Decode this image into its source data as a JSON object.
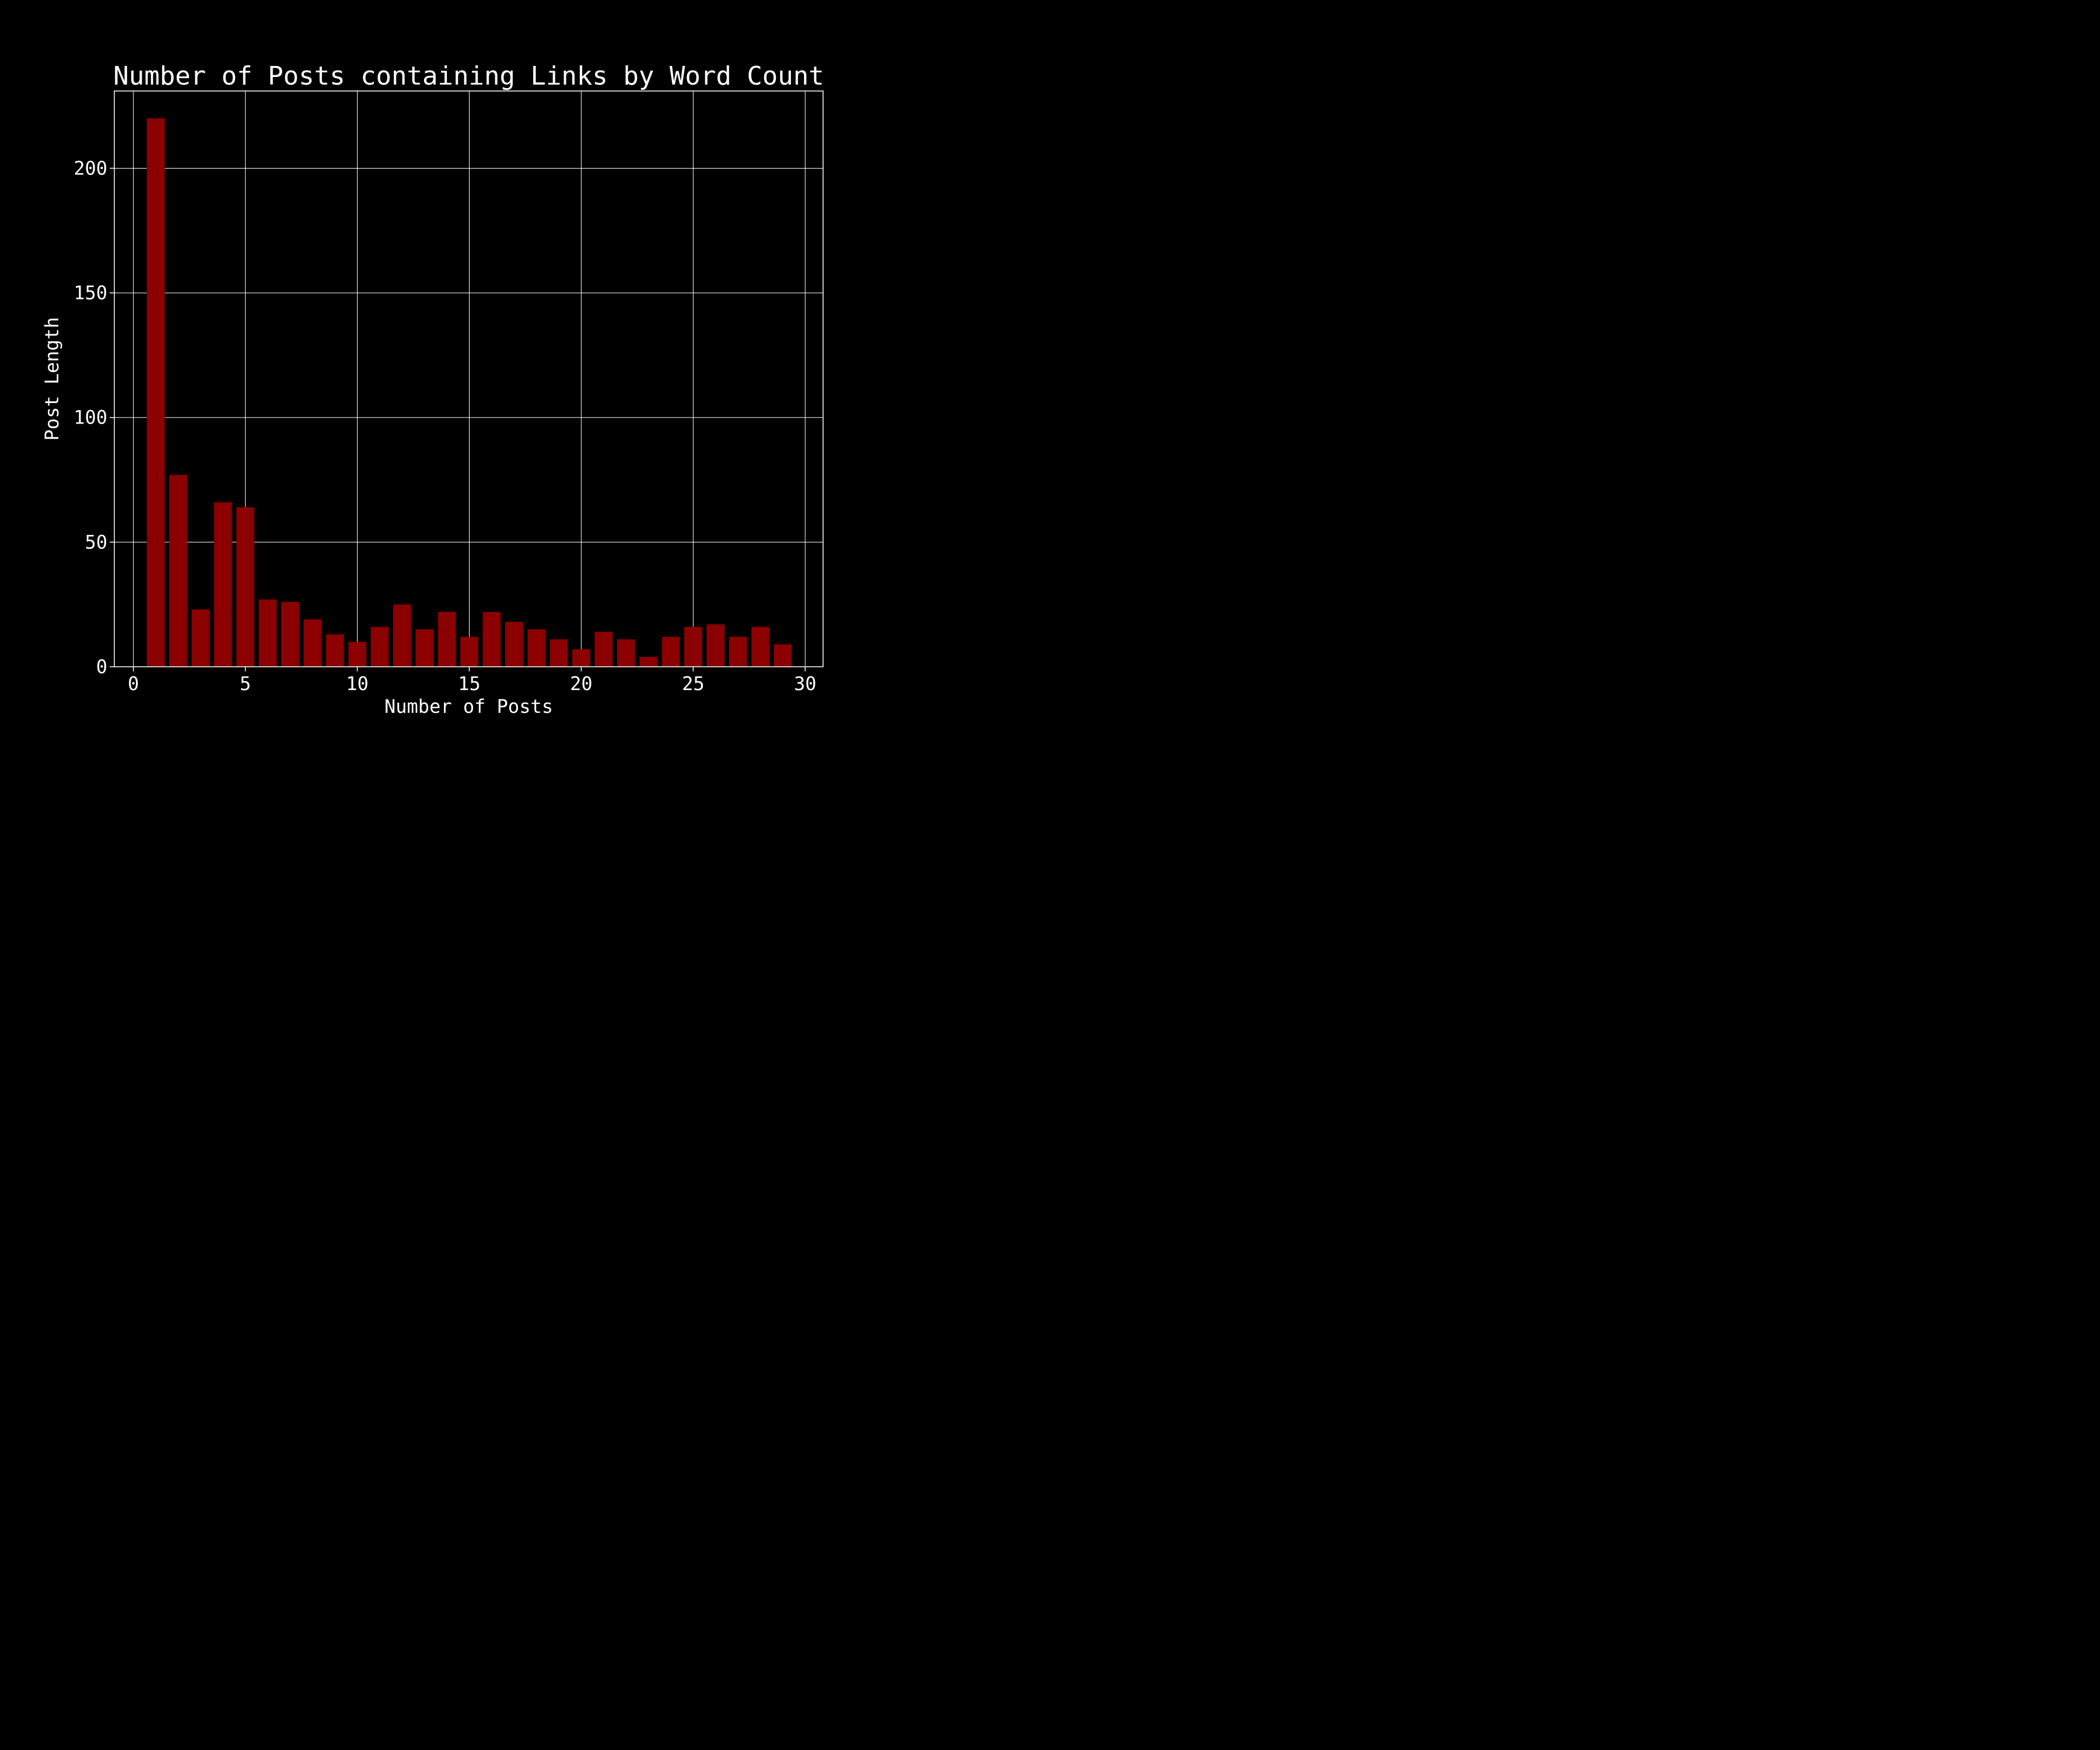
{
  "chart_data": {
    "type": "bar",
    "title": "Number of Posts containing Links by Word Count",
    "xlabel": "Number of Posts",
    "ylabel": "Post Length",
    "x": [
      1,
      2,
      3,
      4,
      5,
      6,
      7,
      8,
      9,
      10,
      11,
      12,
      13,
      14,
      15,
      16,
      17,
      18,
      19,
      20,
      21,
      22,
      23,
      24,
      25,
      26,
      27,
      28,
      29
    ],
    "values": [
      220,
      77,
      23,
      66,
      64,
      27,
      26,
      19,
      13,
      10,
      16,
      25,
      15,
      22,
      12,
      22,
      18,
      15,
      11,
      7,
      14,
      11,
      4,
      12,
      16,
      17,
      12,
      16,
      9
    ],
    "xlim": [
      -0.85,
      30.8
    ],
    "ylim": [
      0,
      231
    ],
    "xticks": [
      0,
      5,
      10,
      15,
      20,
      25,
      30
    ],
    "yticks": [
      0,
      50,
      100,
      150,
      200
    ],
    "bar_width": 0.8,
    "grid": true,
    "background_color": "#000000",
    "bar_color": "#8b0000",
    "text_color": "#ffffff"
  }
}
